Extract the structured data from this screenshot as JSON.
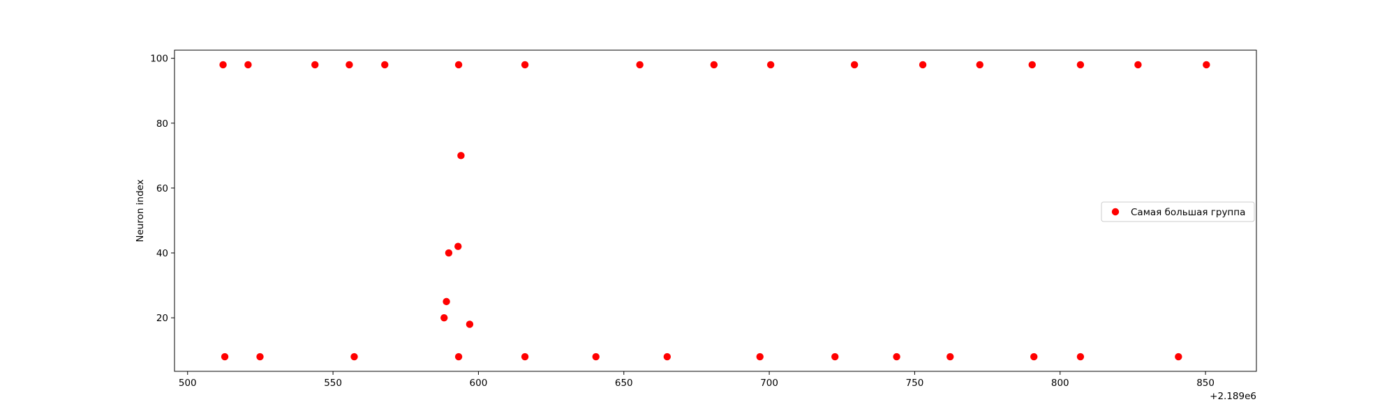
{
  "chart_data": {
    "type": "scatter",
    "title": "",
    "xlabel": "",
    "ylabel": "Neuron index",
    "x_offset_label": "+2.189e6",
    "xlim": [
      495.5,
      867.5
    ],
    "ylim": [
      3.5,
      102.5
    ],
    "x_ticks": [
      500,
      550,
      600,
      650,
      700,
      750,
      800,
      850
    ],
    "y_ticks": [
      20,
      40,
      60,
      80,
      100
    ],
    "grid": false,
    "legend_position": "center-right",
    "series": [
      {
        "name": "Самая большая группа",
        "color": "#ff0000",
        "marker": "circle",
        "points": [
          [
            512.2,
            98
          ],
          [
            520.8,
            98
          ],
          [
            543.8,
            98
          ],
          [
            555.6,
            98
          ],
          [
            567.8,
            98
          ],
          [
            593.2,
            98
          ],
          [
            616.0,
            98
          ],
          [
            655.5,
            98
          ],
          [
            681.0,
            98
          ],
          [
            700.5,
            98
          ],
          [
            729.3,
            98
          ],
          [
            752.8,
            98
          ],
          [
            772.4,
            98
          ],
          [
            790.4,
            98
          ],
          [
            807.0,
            98
          ],
          [
            826.8,
            98
          ],
          [
            850.3,
            98
          ],
          [
            594.0,
            70
          ],
          [
            593.0,
            42
          ],
          [
            589.8,
            40
          ],
          [
            589.0,
            25
          ],
          [
            588.2,
            20
          ],
          [
            597.0,
            18
          ],
          [
            512.8,
            8
          ],
          [
            524.9,
            8
          ],
          [
            557.3,
            8
          ],
          [
            593.2,
            8
          ],
          [
            616.0,
            8
          ],
          [
            640.4,
            8
          ],
          [
            664.9,
            8
          ],
          [
            696.8,
            8
          ],
          [
            722.6,
            8
          ],
          [
            743.8,
            8
          ],
          [
            762.2,
            8
          ],
          [
            791.0,
            8
          ],
          [
            807.0,
            8
          ],
          [
            840.7,
            8
          ]
        ]
      }
    ]
  }
}
